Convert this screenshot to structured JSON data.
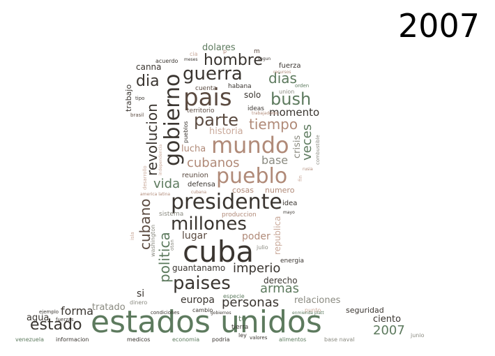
{
  "year_label": "2007",
  "palette": {
    "dark": "#3a3530",
    "brown": "#5a4a40",
    "green": "#5d7a5e",
    "tan": "#b08a78",
    "pale": "#c9a99a",
    "grey": "#8a8a80"
  },
  "words": [
    {
      "id": "estados-unidos",
      "text": "estados unidos",
      "color": "#5d7a5e"
    },
    {
      "id": "cuba",
      "text": "cuba",
      "color": "#3a3530"
    },
    {
      "id": "presidente",
      "text": "presidente",
      "color": "#3a3530"
    },
    {
      "id": "mundo",
      "text": "mundo",
      "color": "#b08a78"
    },
    {
      "id": "pais",
      "text": "pais",
      "color": "#5a4a40"
    },
    {
      "id": "gobierno",
      "text": "gobierno",
      "color": "#3a3530"
    },
    {
      "id": "millones",
      "text": "millones",
      "color": "#3a3530"
    },
    {
      "id": "pueblo",
      "text": "pueblo",
      "color": "#b08a78"
    },
    {
      "id": "paises",
      "text": "paises",
      "color": "#3a3530"
    },
    {
      "id": "guerra",
      "text": "guerra",
      "color": "#3a3530"
    },
    {
      "id": "bush",
      "text": "bush",
      "color": "#5d7a5e"
    },
    {
      "id": "estado",
      "text": "estado",
      "color": "#3a3530"
    },
    {
      "id": "revolucion",
      "text": "revolucion",
      "color": "#3a3530"
    },
    {
      "id": "politica",
      "text": "politica",
      "color": "#5d7a5e"
    },
    {
      "id": "parte",
      "text": "parte",
      "color": "#5a4a40"
    },
    {
      "id": "tiempo",
      "text": "tiempo",
      "color": "#b08a78"
    },
    {
      "id": "hombre",
      "text": "hombre",
      "color": "#3a3530"
    },
    {
      "id": "dias",
      "text": "dias",
      "color": "#5d7a5e"
    },
    {
      "id": "dia",
      "text": "dia",
      "color": "#3a3530"
    },
    {
      "id": "cubanos",
      "text": "cubanos",
      "color": "#b08a78"
    },
    {
      "id": "vida",
      "text": "vida",
      "color": "#5d7a5e"
    },
    {
      "id": "cubano",
      "text": "cubano",
      "color": "#5a4a40"
    },
    {
      "id": "personas",
      "text": "personas",
      "color": "#3a3530"
    },
    {
      "id": "armas",
      "text": "armas",
      "color": "#5d7a5e"
    },
    {
      "id": "imperio",
      "text": "imperio",
      "color": "#3a3530"
    },
    {
      "id": "2007-word",
      "text": "2007",
      "color": "#5d7a5e"
    },
    {
      "id": "forma",
      "text": "forma",
      "color": "#3a3530"
    },
    {
      "id": "veces",
      "text": "veces",
      "color": "#5d7a5e"
    },
    {
      "id": "momento",
      "text": "momento",
      "color": "#3a3530"
    },
    {
      "id": "base",
      "text": "base",
      "color": "#8a8a80"
    },
    {
      "id": "lugar",
      "text": "lugar",
      "color": "#5a4a40"
    },
    {
      "id": "poder",
      "text": "poder",
      "color": "#b08a78"
    },
    {
      "id": "europa",
      "text": "europa",
      "color": "#3a3530"
    },
    {
      "id": "relaciones",
      "text": "relaciones",
      "color": "#8a8a80"
    },
    {
      "id": "ciento",
      "text": "ciento",
      "color": "#3a3530"
    },
    {
      "id": "tratado",
      "text": "tratado",
      "color": "#8a8a80"
    },
    {
      "id": "si",
      "text": "si",
      "color": "#3a3530"
    },
    {
      "id": "agua",
      "text": "agua",
      "color": "#3a3530"
    },
    {
      "id": "crisis",
      "text": "crisis",
      "color": "#8a8a80"
    },
    {
      "id": "historia",
      "text": "historia",
      "color": "#c9a99a"
    },
    {
      "id": "lucha",
      "text": "lucha",
      "color": "#b08a78"
    },
    {
      "id": "dolares",
      "text": "dolares",
      "color": "#5d7a5e"
    },
    {
      "id": "canna",
      "text": "canna",
      "color": "#3a3530"
    },
    {
      "id": "trabajo",
      "text": "trabajo",
      "color": "#3a3530"
    },
    {
      "id": "solo",
      "text": "solo",
      "color": "#3a3530"
    },
    {
      "id": "guantanamo",
      "text": "guantanamo",
      "color": "#3a3530"
    },
    {
      "id": "derecho",
      "text": "derecho",
      "color": "#3a3530"
    },
    {
      "id": "seguridad",
      "text": "seguridad",
      "color": "#3a3530"
    },
    {
      "id": "republica",
      "text": "republica",
      "color": "#c9a99a"
    },
    {
      "id": "cosas",
      "text": "cosas",
      "color": "#b08a78"
    },
    {
      "id": "numero",
      "text": "numero",
      "color": "#b08a78"
    },
    {
      "id": "reunion",
      "text": "reunion",
      "color": "#5a4a40"
    },
    {
      "id": "defensa",
      "text": "defensa",
      "color": "#3a3530"
    },
    {
      "id": "idea",
      "text": "idea",
      "color": "#3a3530"
    },
    {
      "id": "energia",
      "text": "energia",
      "color": "#3a3530"
    },
    {
      "id": "fuerza",
      "text": "fuerza",
      "color": "#3a3530"
    },
    {
      "id": "territorio",
      "text": "territorio",
      "color": "#5a4a40"
    },
    {
      "id": "ideas",
      "text": "ideas",
      "color": "#3a3530"
    },
    {
      "id": "cuenta",
      "text": "cuenta",
      "color": "#5a4a40"
    },
    {
      "id": "habana",
      "text": "habana",
      "color": "#3a3530"
    },
    {
      "id": "union",
      "text": "union",
      "color": "#8a8a80"
    },
    {
      "id": "orden",
      "text": "orden",
      "color": "#5d7a5e"
    },
    {
      "id": "pueblos",
      "text": "pueblos",
      "color": "#3a3530"
    },
    {
      "id": "sistema",
      "text": "sistema",
      "color": "#8a8a80"
    },
    {
      "id": "produccion",
      "text": "produccion",
      "color": "#b08a78"
    },
    {
      "id": "washington",
      "text": "washington",
      "color": "#8a8a80"
    },
    {
      "id": "otan",
      "text": "otan",
      "color": "#8a8a80"
    },
    {
      "id": "julio",
      "text": "julio",
      "color": "#8a8a80"
    },
    {
      "id": "especie",
      "text": "especie",
      "color": "#5d7a5e"
    },
    {
      "id": "cambio",
      "text": "cambio",
      "color": "#3a3530"
    },
    {
      "id": "dinero",
      "text": "dinero",
      "color": "#8a8a80"
    },
    {
      "id": "ejemplo",
      "text": "ejemplo",
      "color": "#3a3530"
    },
    {
      "id": "fuerzas",
      "text": "fuerzas",
      "color": "#3a3530"
    },
    {
      "id": "punto",
      "text": "punto",
      "color": "#c9a99a"
    },
    {
      "id": "tu",
      "text": "tu",
      "color": "#5d7a5e"
    },
    {
      "id": "tierra",
      "text": "tierra",
      "color": "#3a3530"
    },
    {
      "id": "ley",
      "text": "ley",
      "color": "#3a3530"
    },
    {
      "id": "venezuela",
      "text": "venezuela",
      "color": "#5d7a5e"
    },
    {
      "id": "informacion",
      "text": "informacion",
      "color": "#3a3530"
    },
    {
      "id": "medicos",
      "text": "medicos",
      "color": "#3a3530"
    },
    {
      "id": "economia",
      "text": "economia",
      "color": "#5d7a5e"
    },
    {
      "id": "podria",
      "text": "podria",
      "color": "#3a3530"
    },
    {
      "id": "valores",
      "text": "valores",
      "color": "#3a3530"
    },
    {
      "id": "alimentos",
      "text": "alimentos",
      "color": "#5d7a5e"
    },
    {
      "id": "base-naval",
      "text": "base naval",
      "color": "#8a8a80"
    },
    {
      "id": "junio",
      "text": "junio",
      "color": "#8a8a80"
    },
    {
      "id": "enmienda-platt",
      "text": "enmienda platt",
      "color": "#5d7a5e"
    },
    {
      "id": "condiciones",
      "text": "condiciones",
      "color": "#3a3530"
    },
    {
      "id": "gobiernos",
      "text": "gobiernos",
      "color": "#3a3530"
    },
    {
      "id": "acuerdo",
      "text": "acuerdo",
      "color": "#3a3530"
    },
    {
      "id": "meses",
      "text": "meses",
      "color": "#3a3530"
    },
    {
      "id": "cia",
      "text": "cia",
      "color": "#c9a99a"
    },
    {
      "id": "p",
      "text": "p",
      "color": "#b08a78"
    },
    {
      "id": "m",
      "text": "m",
      "color": "#5a4a40"
    },
    {
      "id": "segun",
      "text": "segun",
      "color": "#3a3530"
    },
    {
      "id": "recursos",
      "text": "recursos",
      "color": "#b08a78"
    },
    {
      "id": "tipo",
      "text": "tipo",
      "color": "#3a3530"
    },
    {
      "id": "brasil",
      "text": "brasil",
      "color": "#5a4a40"
    },
    {
      "id": "trabajadores",
      "text": "trabajadores",
      "color": "#b08a78"
    },
    {
      "id": "combustible",
      "text": "combustible",
      "color": "#8a8a80"
    },
    {
      "id": "desarrollo",
      "text": "desarrollo",
      "color": "#c9a99a"
    },
    {
      "id": "independencia",
      "text": "independencia",
      "color": "#c9a99a"
    },
    {
      "id": "america-latina",
      "text": "america latina",
      "color": "#b08a78"
    },
    {
      "id": "cubana",
      "text": "cubana",
      "color": "#b08a78"
    },
    {
      "id": "rusia",
      "text": "rusia",
      "color": "#b08a78"
    },
    {
      "id": "fin",
      "text": "fin",
      "color": "#c9a99a"
    },
    {
      "id": "mayo",
      "text": "mayo",
      "color": "#3a3530"
    },
    {
      "id": "isla",
      "text": "isla",
      "color": "#c9a99a"
    }
  ]
}
